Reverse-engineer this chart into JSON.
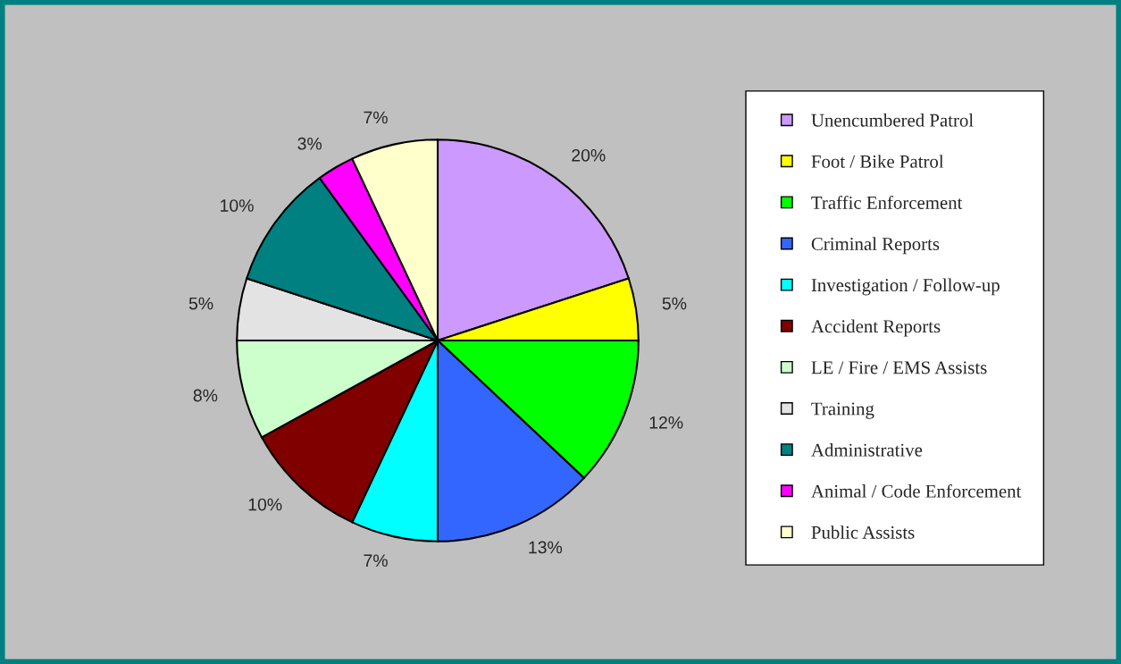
{
  "chart_data": {
    "type": "pie",
    "categories": [
      "Unencumbered Patrol",
      "Foot / Bike Patrol",
      "Traffic Enforcement",
      "Criminal Reports",
      "Investigation / Follow-up",
      "Accident Reports",
      "LE / Fire / EMS Assists",
      "Training",
      "Administrative",
      "Animal / Code Enforcement",
      "Public Assists"
    ],
    "values": [
      20,
      5,
      12,
      13,
      7,
      10,
      8,
      5,
      10,
      3,
      7
    ],
    "colors": [
      "#cc99ff",
      "#ffff00",
      "#00ff00",
      "#3366ff",
      "#00ffff",
      "#800000",
      "#ccffcc",
      "#e3e3e3",
      "#008080",
      "#ff00ff",
      "#ffffcc"
    ],
    "value_labels": [
      "20%",
      "5%",
      "12%",
      "13%",
      "7%",
      "10%",
      "8%",
      "5%",
      "10%",
      "3%",
      "7%"
    ],
    "legend": "right"
  }
}
